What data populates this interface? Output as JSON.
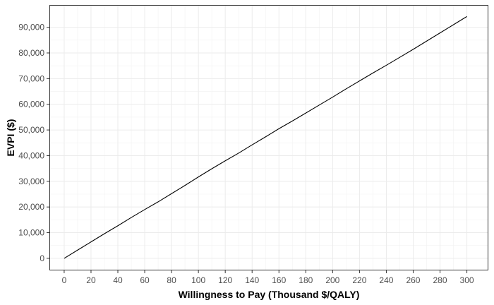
{
  "chart_data": {
    "type": "line",
    "title": "",
    "xlabel": "Willingness to Pay (Thousand $/QALY)",
    "ylabel": "EVPI ($)",
    "xlim": [
      -11,
      316
    ],
    "ylim": [
      -4700,
      98700
    ],
    "x_ticks": [
      0,
      20,
      40,
      60,
      80,
      100,
      120,
      140,
      160,
      180,
      200,
      220,
      240,
      260,
      280,
      300
    ],
    "y_ticks": [
      0,
      10000,
      20000,
      30000,
      40000,
      50000,
      60000,
      70000,
      80000,
      90000
    ],
    "y_tick_labels": [
      "0",
      "10,000",
      "20,000",
      "30,000",
      "40,000",
      "50,000",
      "60,000",
      "70,000",
      "80,000",
      "90,000"
    ],
    "grid": true,
    "series": [
      {
        "name": "",
        "color": "#000000",
        "x": [
          0,
          10,
          20,
          30,
          40,
          50,
          60,
          70,
          80,
          90,
          100,
          110,
          120,
          130,
          140,
          150,
          160,
          170,
          180,
          190,
          200,
          210,
          220,
          230,
          240,
          250,
          260,
          270,
          280,
          290,
          300
        ],
        "y": [
          0,
          3200,
          6400,
          9600,
          12700,
          15900,
          19000,
          22000,
          25200,
          28400,
          31700,
          34900,
          38000,
          41000,
          44200,
          47300,
          50500,
          53500,
          56600,
          59700,
          62800,
          66000,
          69100,
          72200,
          75200,
          78300,
          81400,
          84600,
          87800,
          91000,
          94200
        ]
      }
    ]
  },
  "colors": {
    "panel_border": "#333333",
    "grid_major": "#ebebeb",
    "grid_minor": "#f2f2f2",
    "line": "#000000"
  }
}
